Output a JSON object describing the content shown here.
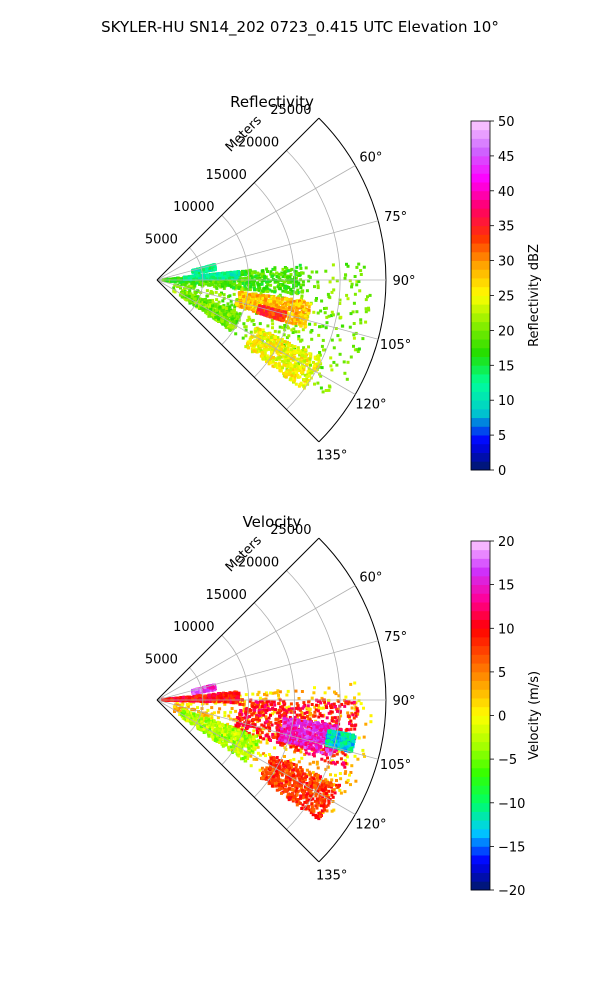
{
  "figure_title": "SKYLER-HU  SN14_202  0723_0.415 UTC Elevation 10°",
  "colors": {
    "grid": "#b0b0b0",
    "reflectivity_stops": [
      "#001a66",
      "#0000ff",
      "#00cccc",
      "#00ff99",
      "#22dd00",
      "#88ee00",
      "#ffff00",
      "#ffaa00",
      "#ff3300",
      "#ff0066",
      "#ff00ff",
      "#cc66ff",
      "#ffccff"
    ],
    "velocity_stops": [
      "#001a66",
      "#0000ff",
      "#00ccff",
      "#00ff66",
      "#33ff00",
      "#aaff00",
      "#ffff00",
      "#ffaa00",
      "#ff5500",
      "#ff0000",
      "#ff0099",
      "#cc33ff",
      "#ffccff"
    ]
  },
  "chart_data": [
    {
      "type": "heatmap",
      "title": "Reflectivity",
      "projection": "polar sector",
      "azimuth_range_deg": [
        45,
        135
      ],
      "range_limit_m": 25000,
      "range_label": "Meters",
      "range_ticks": [
        "5000",
        "10000",
        "15000",
        "20000",
        "25000"
      ],
      "angle_ticks": [
        "60°",
        "75°",
        "90°",
        "105°",
        "120°",
        "135°"
      ],
      "grid": true,
      "colorbar": {
        "label": "Reflectivity dBZ",
        "min": 0,
        "max": 50,
        "ticks": [
          "0",
          "5",
          "10",
          "15",
          "20",
          "25",
          "30",
          "35",
          "40",
          "45",
          "50"
        ]
      },
      "echo_regions": [
        {
          "az": [
            85,
            125
          ],
          "r": [
            2000,
            23500
          ],
          "value": 20
        },
        {
          "az": [
            98,
            108
          ],
          "r": [
            9000,
            17000
          ],
          "value": 28
        },
        {
          "az": [
            104,
            108
          ],
          "r": [
            11500,
            14500
          ],
          "value": 34
        },
        {
          "az": [
            115,
            127
          ],
          "r": [
            12000,
            20000
          ],
          "value": 25
        },
        {
          "az": [
            84,
            96
          ],
          "r": [
            600,
            16000
          ],
          "value": 18
        },
        {
          "az": [
            84,
            89
          ],
          "r": [
            3000,
            9000
          ],
          "value": 12
        },
        {
          "az": [
            112,
            124
          ],
          "r": [
            3000,
            10000
          ],
          "value": 20
        },
        {
          "az": [
            75,
            80
          ],
          "r": [
            4000,
            6500
          ],
          "value": 12
        }
      ]
    },
    {
      "type": "heatmap",
      "title": "Velocity",
      "projection": "polar sector",
      "azimuth_range_deg": [
        45,
        135
      ],
      "range_limit_m": 25000,
      "range_label": "Meters",
      "range_ticks": [
        "5000",
        "10000",
        "15000",
        "20000",
        "25000"
      ],
      "angle_ticks": [
        "60°",
        "75°",
        "90°",
        "105°",
        "120°",
        "135°"
      ],
      "grid": true,
      "colorbar": {
        "label": "Velocity (m/s)",
        "min": -20,
        "max": 20,
        "ticks": [
          "−20",
          "−15",
          "−10",
          "−5",
          "0",
          "5",
          "10",
          "15",
          "20"
        ]
      },
      "echo_regions": [
        {
          "az": [
            85,
            125
          ],
          "r": [
            2000,
            23500
          ],
          "value": 2
        },
        {
          "az": [
            84,
            92
          ],
          "r": [
            600,
            9000
          ],
          "value": 10
        },
        {
          "az": [
            90,
            110
          ],
          "r": [
            9000,
            22000
          ],
          "value": 10
        },
        {
          "az": [
            98,
            108
          ],
          "r": [
            14000,
            20000
          ],
          "value": 15
        },
        {
          "az": [
            110,
            125
          ],
          "r": [
            3000,
            12000
          ],
          "value": -3
        },
        {
          "az": [
            115,
            127
          ],
          "r": [
            14000,
            22000
          ],
          "value": 8
        },
        {
          "az": [
            75,
            80
          ],
          "r": [
            4000,
            6500
          ],
          "value": 16
        },
        {
          "az": [
            100,
            105
          ],
          "r": [
            19000,
            22000
          ],
          "value": -12
        }
      ]
    }
  ]
}
